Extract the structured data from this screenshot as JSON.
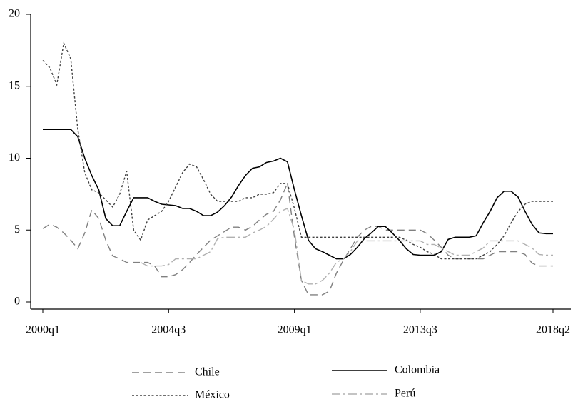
{
  "chart_data": {
    "type": "line",
    "categories": [
      "2000q1",
      null,
      null,
      null,
      null,
      null,
      null,
      null,
      null,
      null,
      null,
      null,
      null,
      null,
      null,
      null,
      null,
      null,
      "2004q3",
      null,
      null,
      null,
      null,
      null,
      null,
      null,
      null,
      null,
      null,
      null,
      null,
      null,
      null,
      null,
      null,
      null,
      "2009q1",
      null,
      null,
      null,
      null,
      null,
      null,
      null,
      null,
      null,
      null,
      null,
      null,
      null,
      null,
      null,
      null,
      null,
      "2013q3",
      null,
      null,
      null,
      null,
      null,
      null,
      null,
      null,
      null,
      null,
      null,
      null,
      null,
      null,
      null,
      null,
      null,
      null,
      "2018q2"
    ],
    "series": [
      {
        "name": "Chile",
        "color": "#808080",
        "style": "dashed",
        "values": [
          5.1,
          5.4,
          5.2,
          4.8,
          4.3,
          3.7,
          4.8,
          6.4,
          5.8,
          4.3,
          3.2,
          3,
          2.75,
          2.75,
          2.75,
          2.75,
          2.5,
          1.75,
          1.75,
          1.9,
          2.25,
          2.75,
          3.3,
          3.8,
          4.3,
          4.6,
          4.9,
          5.2,
          5.2,
          5,
          5.25,
          5.7,
          6.1,
          6.3,
          7.1,
          8.25,
          4.5,
          1.5,
          0.5,
          0.5,
          0.5,
          0.75,
          2,
          2.9,
          3.7,
          4.5,
          5,
          5.25,
          5.25,
          5,
          5,
          5,
          5,
          5,
          5,
          4.75,
          4.3,
          3.8,
          3.25,
          3,
          3,
          3,
          3,
          3,
          3.25,
          3.5,
          3.5,
          3.5,
          3.5,
          3.3,
          2.7,
          2.5,
          2.5,
          2.5
        ]
      },
      {
        "name": "Colombia",
        "color": "#000000",
        "style": "solid",
        "values": [
          12,
          12,
          12,
          12,
          12,
          11.5,
          10,
          8.8,
          7.8,
          5.8,
          5.3,
          5.3,
          6.3,
          7.25,
          7.25,
          7.25,
          7,
          6.8,
          6.75,
          6.7,
          6.5,
          6.5,
          6.3,
          6,
          6,
          6.25,
          6.7,
          7.3,
          8.1,
          8.8,
          9.3,
          9.4,
          9.7,
          9.8,
          10,
          9.75,
          7.8,
          6,
          4.3,
          3.7,
          3.5,
          3.25,
          3,
          3,
          3.3,
          3.8,
          4.4,
          4.8,
          5.25,
          5.25,
          4.8,
          4.3,
          3.7,
          3.3,
          3.25,
          3.25,
          3.25,
          3.5,
          4.35,
          4.5,
          4.5,
          4.5,
          4.6,
          5.5,
          6.3,
          7.25,
          7.7,
          7.7,
          7.3,
          6.3,
          5.4,
          4.8,
          4.75,
          4.75
        ]
      },
      {
        "name": "México",
        "color": "#404040",
        "style": "dotted",
        "values": [
          16.8,
          16.3,
          15.1,
          18,
          16.9,
          12,
          9,
          7.8,
          7.6,
          7.1,
          6.6,
          7.5,
          9.1,
          5,
          4.3,
          5.7,
          6,
          6.3,
          7,
          8,
          9,
          9.6,
          9.4,
          8.5,
          7.5,
          7,
          7,
          7,
          7,
          7.25,
          7.25,
          7.5,
          7.5,
          7.6,
          8.25,
          8.25,
          6.5,
          4.5,
          4.5,
          4.5,
          4.5,
          4.5,
          4.5,
          4.5,
          4.5,
          4.5,
          4.5,
          4.5,
          4.5,
          4.5,
          4.5,
          4.5,
          4.3,
          4,
          3.8,
          3.5,
          3.3,
          3,
          3,
          3,
          3,
          3,
          3,
          3.25,
          3.5,
          4,
          4.6,
          5.5,
          6.3,
          6.8,
          7,
          7,
          7,
          7
        ]
      },
      {
        "name": "Perú",
        "color": "#b0b0b0",
        "style": "dashdot",
        "values": [
          null,
          null,
          null,
          null,
          null,
          null,
          null,
          null,
          null,
          null,
          null,
          null,
          null,
          null,
          2.75,
          2.5,
          2.5,
          2.5,
          2.6,
          3,
          3,
          3,
          3,
          3.25,
          3.5,
          4.4,
          4.5,
          4.5,
          4.5,
          4.5,
          4.8,
          5,
          5.25,
          5.75,
          6.3,
          6.5,
          5,
          1.5,
          1.25,
          1.25,
          1.5,
          2,
          2.75,
          3,
          3.5,
          4.25,
          4.25,
          4.25,
          4.25,
          4.25,
          4.25,
          4.25,
          4.25,
          4.25,
          4.25,
          4,
          4,
          3.75,
          3.5,
          3.25,
          3.25,
          3.25,
          3.5,
          3.75,
          4.25,
          4.25,
          4.25,
          4.25,
          4.25,
          4,
          3.75,
          3.3,
          3.25,
          3.25
        ]
      }
    ],
    "ylim": [
      0,
      20
    ],
    "yticks": [
      0,
      5,
      10,
      15,
      20
    ]
  }
}
